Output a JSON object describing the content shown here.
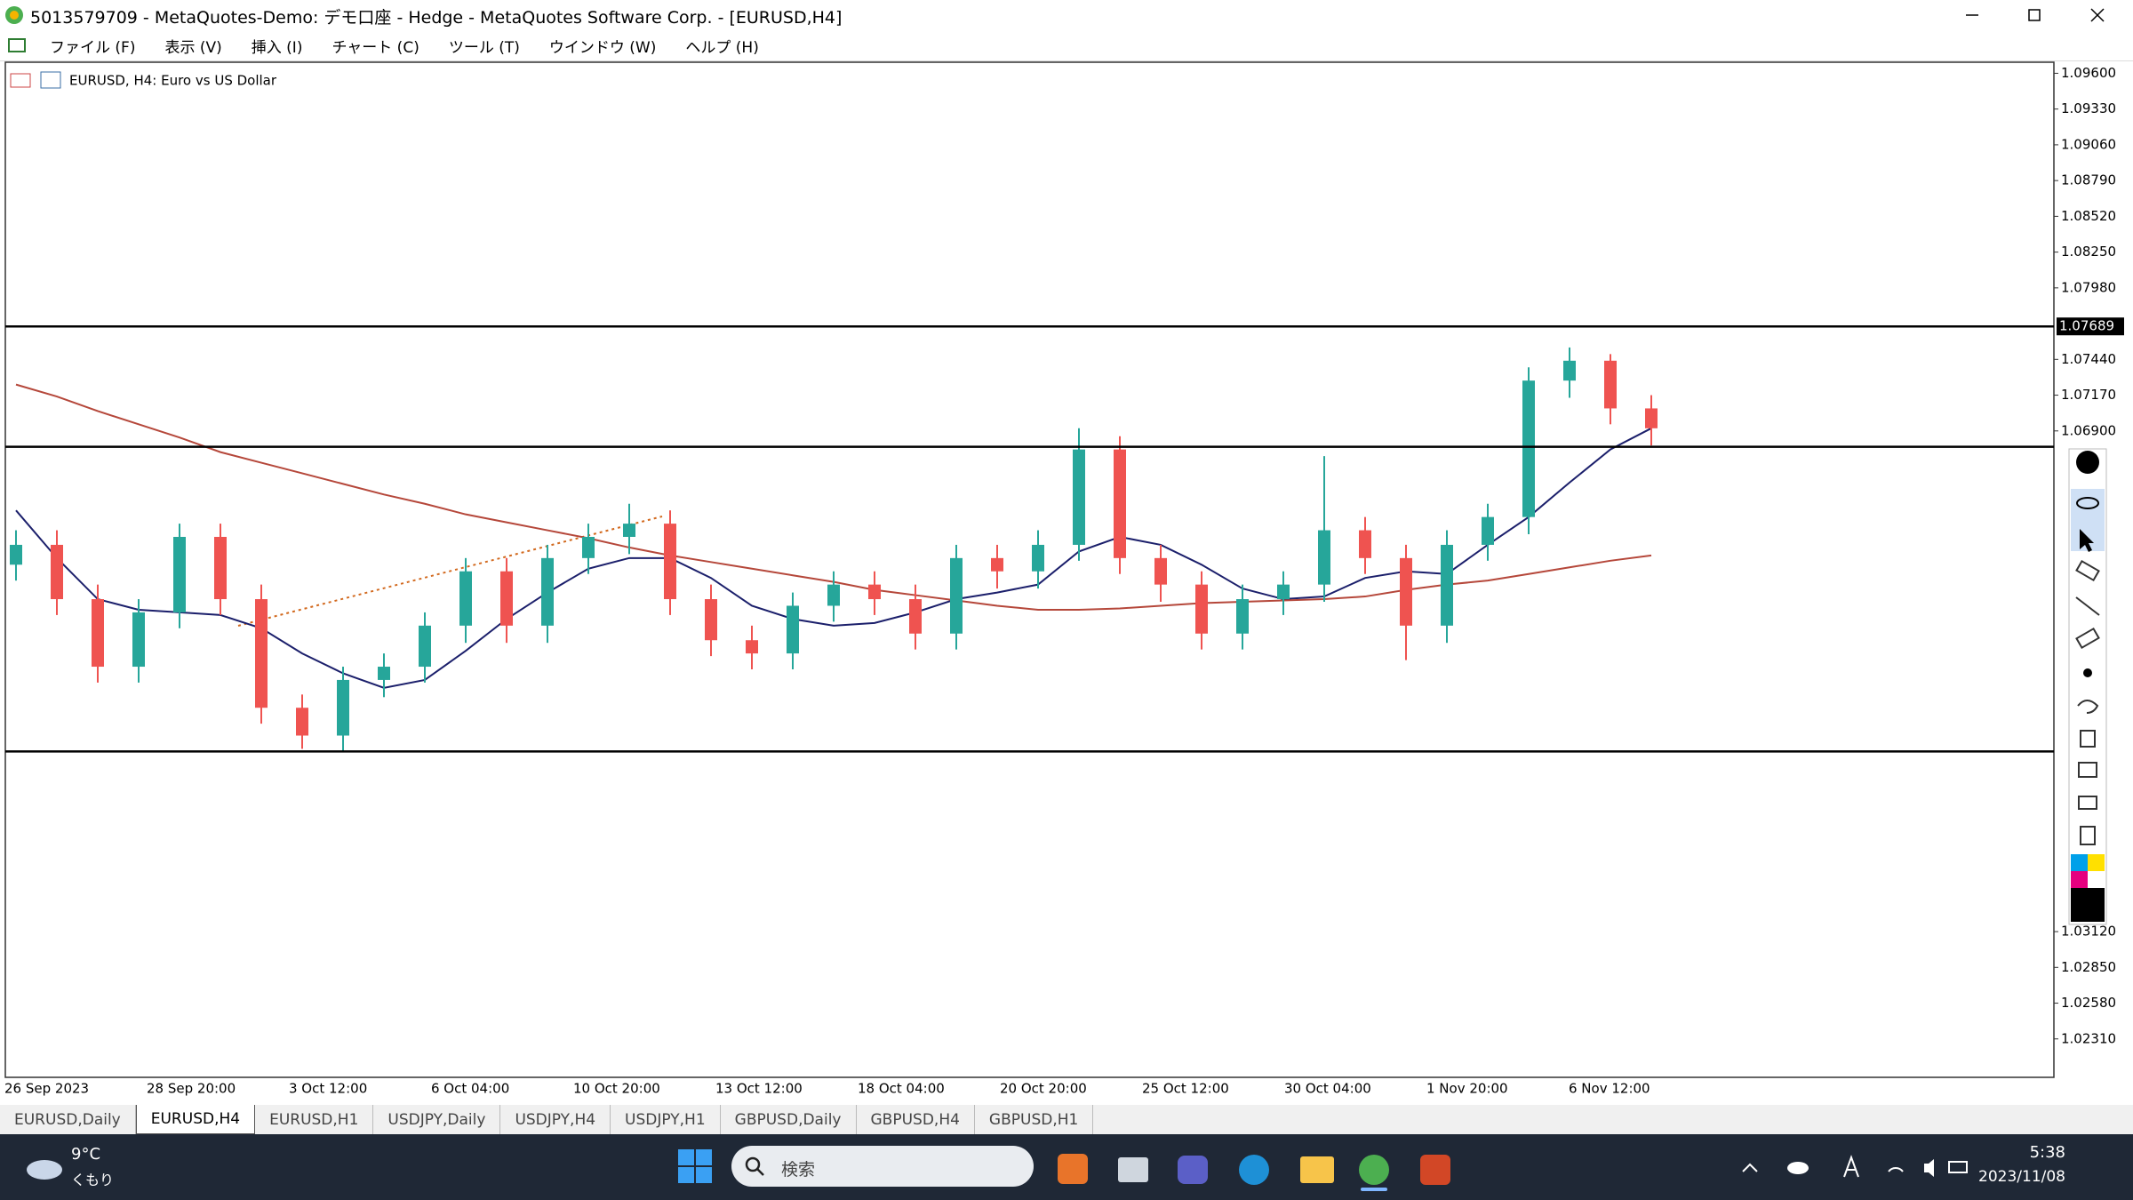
{
  "window": {
    "title": "5013579709 - MetaQuotes-Demo: デモ口座 - Hedge - MetaQuotes Software Corp. - [EURUSD,H4]",
    "menu": [
      "ファイル (F)",
      "表示 (V)",
      "挿入 (I)",
      "チャート (C)",
      "ツール (T)",
      "ウインドウ (W)",
      "ヘルプ (H)"
    ]
  },
  "chart_data": {
    "type": "candlestick",
    "title": "EURUSD, H4:  Euro vs US Dollar",
    "x_labels": [
      "26 Sep 2023",
      "28 Sep 20:00",
      "3 Oct 12:00",
      "6 Oct 04:00",
      "10 Oct 20:00",
      "13 Oct 12:00",
      "18 Oct 04:00",
      "20 Oct 20:00",
      "25 Oct 12:00",
      "30 Oct 04:00",
      "1 Nov 20:00",
      "6 Nov 12:00"
    ],
    "open": [
      1.0589,
      1.0604,
      1.0563,
      1.0512,
      1.0553,
      1.061,
      1.0563,
      1.0481,
      1.046,
      1.0502,
      1.0512,
      1.0543,
      1.0584,
      1.0543,
      1.0594,
      1.061,
      1.062,
      1.0563,
      1.0532,
      1.0522,
      1.0558,
      1.0574,
      1.0563,
      1.0537,
      1.0594,
      1.0584,
      1.0604,
      1.0676,
      1.0594,
      1.0574,
      1.0537,
      1.0563,
      1.0574,
      1.0615,
      1.0594,
      1.0543,
      1.0604,
      1.0625,
      1.0728,
      1.0743,
      1.0707
    ],
    "high": [
      1.0615,
      1.0615,
      1.0574,
      1.0563,
      1.062,
      1.062,
      1.0574,
      1.0491,
      1.0512,
      1.0522,
      1.0553,
      1.0594,
      1.0594,
      1.0604,
      1.062,
      1.0635,
      1.063,
      1.0574,
      1.0543,
      1.0568,
      1.0584,
      1.0584,
      1.0574,
      1.0604,
      1.0604,
      1.0615,
      1.0692,
      1.0686,
      1.0604,
      1.0584,
      1.0574,
      1.0584,
      1.0671,
      1.0625,
      1.0604,
      1.0615,
      1.0635,
      1.0738,
      1.0753,
      1.0748,
      1.0717
    ],
    "low": [
      1.0577,
      1.0551,
      1.05,
      1.05,
      1.0541,
      1.0551,
      1.0469,
      1.045,
      1.0448,
      1.0489,
      1.05,
      1.053,
      1.053,
      1.053,
      1.0582,
      1.0597,
      1.0551,
      1.052,
      1.051,
      1.051,
      1.0546,
      1.0551,
      1.0525,
      1.0525,
      1.0571,
      1.0571,
      1.0592,
      1.0582,
      1.0561,
      1.0525,
      1.0525,
      1.0551,
      1.0561,
      1.0582,
      1.0517,
      1.053,
      1.0592,
      1.0612,
      1.0715,
      1.0695,
      1.0679
    ],
    "close": [
      1.0604,
      1.0563,
      1.0512,
      1.0553,
      1.061,
      1.0563,
      1.0481,
      1.046,
      1.0502,
      1.0512,
      1.0543,
      1.0584,
      1.0543,
      1.0594,
      1.061,
      1.062,
      1.0563,
      1.0532,
      1.0522,
      1.0558,
      1.0574,
      1.0563,
      1.0537,
      1.0594,
      1.0584,
      1.0604,
      1.0676,
      1.0594,
      1.0574,
      1.0537,
      1.0563,
      1.0574,
      1.0615,
      1.0594,
      1.0543,
      1.0604,
      1.0625,
      1.0728,
      1.0743,
      1.0707,
      1.0692
    ],
    "up_color": "#26a69a",
    "down_color": "#ef5350",
    "moving_averages": [
      {
        "color": "#1b1f6b",
        "values": [
          1.063,
          1.0594,
          1.0563,
          1.0555,
          1.0553,
          1.0551,
          1.0541,
          1.0522,
          1.0507,
          1.0496,
          1.0502,
          1.0524,
          1.0548,
          1.0568,
          1.0586,
          1.0594,
          1.0594,
          1.0579,
          1.0558,
          1.0548,
          1.0543,
          1.0545,
          1.0553,
          1.0563,
          1.0568,
          1.0574,
          1.0599,
          1.061,
          1.0604,
          1.0589,
          1.0571,
          1.0563,
          1.0565,
          1.0579,
          1.0584,
          1.0582,
          1.0604,
          1.0625,
          1.0651,
          1.0676,
          1.0692
        ]
      },
      {
        "color": "#b5473a",
        "values": [
          1.0725,
          1.0716,
          1.0705,
          1.0695,
          1.0685,
          1.0674,
          1.0666,
          1.0658,
          1.065,
          1.0642,
          1.0635,
          1.0627,
          1.0621,
          1.0615,
          1.0609,
          1.0602,
          1.0596,
          1.0591,
          1.0586,
          1.0581,
          1.0576,
          1.057,
          1.0566,
          1.0562,
          1.0558,
          1.0555,
          1.0555,
          1.0556,
          1.0558,
          1.056,
          1.0561,
          1.0562,
          1.0563,
          1.0565,
          1.057,
          1.0574,
          1.0577,
          1.0582,
          1.0587,
          1.0592,
          1.0596
        ]
      }
    ],
    "levels": [
      1.07689,
      1.0678,
      1.0448
    ],
    "ylim": [
      1.0204,
      1.0966
    ],
    "yticks": [
      {
        "value": 1.096,
        "label": "1.09600"
      },
      {
        "value": 1.0933,
        "label": "1.09330"
      },
      {
        "value": 1.0906,
        "label": "1.09060"
      },
      {
        "value": 1.0879,
        "label": "1.08790"
      },
      {
        "value": 1.0852,
        "label": "1.08520"
      },
      {
        "value": 1.0825,
        "label": "1.08250"
      },
      {
        "value": 1.0798,
        "label": "1.07980"
      },
      {
        "value": 1.0744,
        "label": "1.07440"
      },
      {
        "value": 1.0717,
        "label": "1.07170"
      },
      {
        "value": 1.069,
        "label": "1.06900"
      },
      {
        "value": 1.0312,
        "label": "1.03120"
      },
      {
        "value": 1.0285,
        "label": "1.02850"
      },
      {
        "value": 1.0258,
        "label": "1.02580"
      },
      {
        "value": 1.0231,
        "label": "1.02310"
      }
    ]
  },
  "tabs": [
    "EURUSD,Daily",
    "EURUSD,H4",
    "EURUSD,H1",
    "USDJPY,Daily",
    "USDJPY,H4",
    "USDJPY,H1",
    "GBPUSD,Daily",
    "GBPUSD,H4",
    "GBPUSD,H1"
  ],
  "active_tab": 1,
  "taskbar": {
    "temperature": "9°C",
    "weather": "くもり",
    "search": "検索",
    "time": "5:38",
    "date": "2023/11/08"
  }
}
